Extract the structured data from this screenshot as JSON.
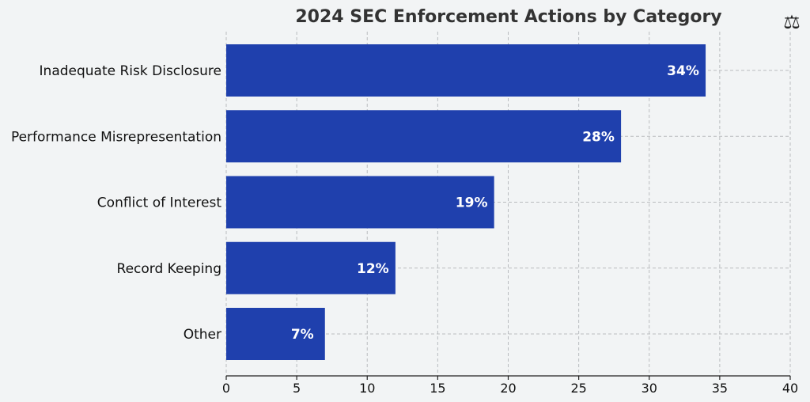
{
  "chart_data": {
    "type": "bar",
    "orientation": "horizontal",
    "title": "2024 SEC Enforcement Actions by Category",
    "title_icon": "balance-scale-icon",
    "title_icon_glyph": "⚖",
    "categories": [
      "Inadequate Risk Disclosure",
      "Performance Misrepresentation",
      "Conflict of Interest",
      "Record Keeping",
      "Other"
    ],
    "values": [
      34,
      28,
      19,
      12,
      7
    ],
    "data_labels": [
      "34%",
      "28%",
      "19%",
      "12%",
      "7%"
    ],
    "xlim": [
      0,
      40
    ],
    "xticks": [
      0,
      5,
      10,
      15,
      20,
      25,
      30,
      35,
      40
    ],
    "xlabel": "",
    "ylabel": "",
    "grid": true,
    "colors": {
      "bar": "#1f40ad",
      "background": "#f2f4f5",
      "grid": "#b9bcbf",
      "data_label": "#ffffff",
      "title": "#333333"
    }
  }
}
